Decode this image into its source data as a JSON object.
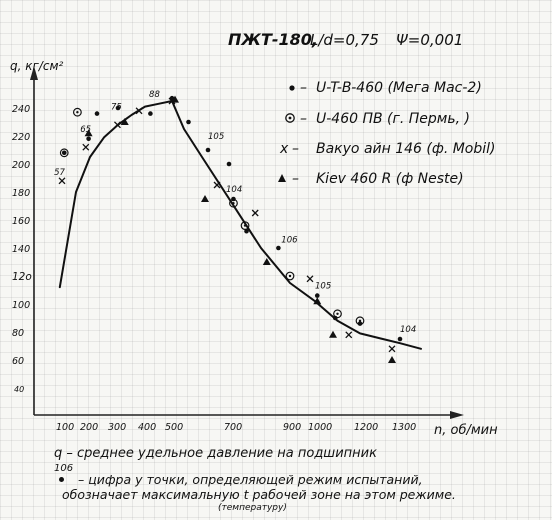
{
  "chart_data": {
    "type": "scatter",
    "title": "ПЖТ-180,",
    "params": [
      "L/d=0,75",
      "Ψ=0,001"
    ],
    "ylabel": "q, кг/см²",
    "xlabel": "n, об/мин",
    "x_ticks": [
      "100",
      "200",
      "300",
      "400",
      "500",
      "700",
      "900",
      "1000",
      "1200",
      "1300"
    ],
    "y_ticks": [
      "240",
      "220",
      "200",
      "180",
      "160",
      "140",
      "12o",
      "100",
      "80",
      "60"
    ],
    "y_bottom_label": "40",
    "xlim": [
      50,
      1400
    ],
    "ylim": [
      40,
      250
    ],
    "legend": [
      {
        "marker": "dot",
        "sep": "–",
        "label": "U-T-B-460 (Мега Мас-2)"
      },
      {
        "marker": "circled-dot",
        "sep": "–",
        "label": "U-460 ПВ (г. Пермь, )"
      },
      {
        "marker": "x",
        "sep": "–",
        "label": "Вакуо айн 146 (ф. Mobil)"
      },
      {
        "marker": "triangle",
        "sep": "–",
        "label": "Kiev 460 R (ф Neste)"
      }
    ],
    "curve": {
      "x": [
        95,
        150,
        200,
        250,
        300,
        350,
        400,
        450,
        500,
        540,
        600,
        700,
        800,
        900,
        1000,
        1100,
        1200,
        1300,
        1370
      ],
      "y": [
        112,
        180,
        205,
        219,
        228,
        235,
        241,
        243,
        245,
        225,
        205,
        172,
        140,
        115,
        102,
        88,
        79,
        72,
        68
      ]
    },
    "series": [
      {
        "marker": "dot",
        "x": [
          108,
          195,
          225,
          300,
          420,
          500,
          555,
          620,
          690,
          705,
          750,
          860,
          1010,
          1090,
          1200,
          1300
        ],
        "y": [
          208,
          218,
          236,
          240,
          236,
          247,
          230,
          210,
          200,
          175,
          152,
          140,
          106,
          90,
          86,
          75
        ]
      },
      {
        "marker": "circled-dot",
        "x": [
          108,
          155,
          705,
          745,
          900,
          1100,
          1200
        ],
        "y": [
          208,
          237,
          172,
          156,
          120,
          93,
          88
        ]
      },
      {
        "marker": "x",
        "x": [
          100,
          185,
          298,
          378,
          500,
          650,
          780,
          980,
          1150,
          1280
        ],
        "y": [
          188,
          212,
          228,
          238,
          245,
          185,
          165,
          118,
          78,
          68
        ]
      },
      {
        "marker": "triangle",
        "x": [
          195,
          325,
          510,
          610,
          820,
          1010,
          1080,
          1280
        ],
        "y": [
          222,
          230,
          246,
          175,
          130,
          102,
          78,
          60
        ]
      }
    ],
    "point_labels": [
      {
        "text": "57",
        "x": 82,
        "y": 192
      },
      {
        "text": "65",
        "x": 165,
        "y": 223
      },
      {
        "text": "75",
        "x": 275,
        "y": 239
      },
      {
        "text": "88",
        "x": 415,
        "y": 248
      },
      {
        "text": "105",
        "x": 620,
        "y": 218
      },
      {
        "text": "104",
        "x": 680,
        "y": 180
      },
      {
        "text": "106",
        "x": 870,
        "y": 144
      },
      {
        "text": "105",
        "x": 1000,
        "y": 111
      },
      {
        "text": "104",
        "x": 1300,
        "y": 80
      }
    ]
  },
  "footer": {
    "q_line": "q – среднее удельное давление на подшипник",
    "example_label": "106",
    "note_line1": "– цифра у точки, определяющей режим испытаний,",
    "note_line2": "обозначает максимальную t рабочей зоне на этом режиме.",
    "note_line3": "(температуру)"
  }
}
